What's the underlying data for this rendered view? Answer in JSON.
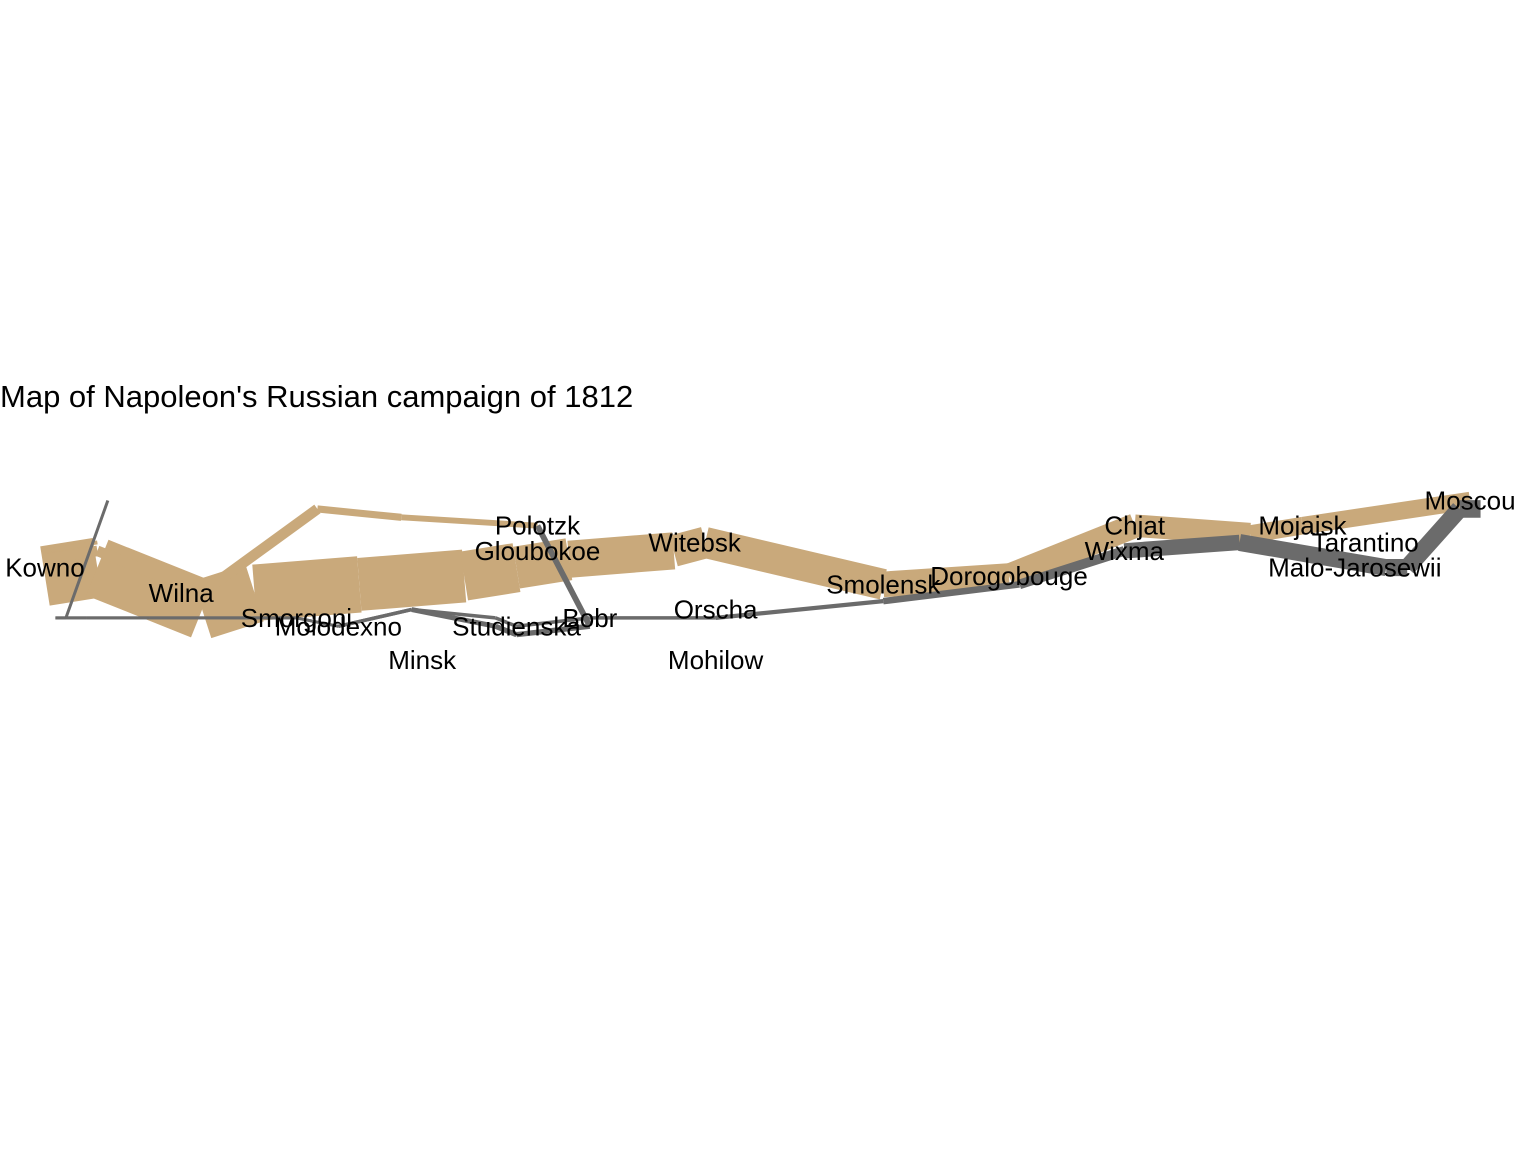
{
  "chart_data": {
    "type": "line",
    "title": "Map of Napoleon's Russian campaign of 1812",
    "xlabel": "",
    "ylabel": "",
    "xlim": [
      23.8,
      38.0
    ],
    "ylim": [
      53.9,
      55.9
    ],
    "grid": false,
    "legend": "none",
    "colors": {
      "advance": "#c9a97b",
      "retreat": "#6b6b6b",
      "text": "#000000",
      "background": "#ffffff"
    },
    "series": [
      {
        "direction": "A",
        "group": 1,
        "points": [
          {
            "lon": 24.0,
            "lat": 54.9,
            "survivors": 340000
          },
          {
            "lon": 24.5,
            "lat": 55.0,
            "survivors": 340000
          },
          {
            "lon": 25.5,
            "lat": 54.5,
            "survivors": 340000
          },
          {
            "lon": 26.0,
            "lat": 54.7,
            "survivors": 320000
          },
          {
            "lon": 27.0,
            "lat": 54.8,
            "survivors": 300000
          },
          {
            "lon": 28.0,
            "lat": 54.9,
            "survivors": 280000
          },
          {
            "lon": 28.5,
            "lat": 55.0,
            "survivors": 240000
          },
          {
            "lon": 29.0,
            "lat": 55.1,
            "survivors": 210000
          },
          {
            "lon": 30.0,
            "lat": 55.2,
            "survivors": 180000
          },
          {
            "lon": 30.3,
            "lat": 55.3,
            "survivors": 175000
          },
          {
            "lon": 32.0,
            "lat": 54.8,
            "survivors": 145000
          },
          {
            "lon": 33.2,
            "lat": 54.9,
            "survivors": 140000
          },
          {
            "lon": 34.4,
            "lat": 55.5,
            "survivors": 127100
          },
          {
            "lon": 35.5,
            "lat": 55.4,
            "survivors": 100000
          },
          {
            "lon": 36.0,
            "lat": 55.5,
            "survivors": 100000
          },
          {
            "lon": 37.6,
            "lat": 55.8,
            "survivors": 100000
          }
        ]
      },
      {
        "direction": "R",
        "group": 1,
        "points": [
          {
            "lon": 37.7,
            "lat": 55.7,
            "survivors": 100000
          },
          {
            "lon": 37.5,
            "lat": 55.7,
            "survivors": 98000
          },
          {
            "lon": 37.0,
            "lat": 55.0,
            "survivors": 97000
          },
          {
            "lon": 36.8,
            "lat": 55.0,
            "survivors": 96000
          },
          {
            "lon": 35.4,
            "lat": 55.3,
            "survivors": 87000
          },
          {
            "lon": 34.3,
            "lat": 55.2,
            "survivors": 55000
          },
          {
            "lon": 33.3,
            "lat": 54.8,
            "survivors": 37000
          },
          {
            "lon": 32.0,
            "lat": 54.6,
            "survivors": 24000
          },
          {
            "lon": 30.4,
            "lat": 54.4,
            "survivors": 20000
          },
          {
            "lon": 29.2,
            "lat": 54.4,
            "survivors": 20000
          },
          {
            "lon": 28.5,
            "lat": 54.3,
            "survivors": 20000
          },
          {
            "lon": 28.3,
            "lat": 54.4,
            "survivors": 20000
          },
          {
            "lon": 27.5,
            "lat": 54.5,
            "survivors": 20000
          },
          {
            "lon": 26.8,
            "lat": 54.3,
            "survivors": 12000
          },
          {
            "lon": 26.4,
            "lat": 54.4,
            "survivors": 14000
          },
          {
            "lon": 25.0,
            "lat": 54.4,
            "survivors": 8000
          },
          {
            "lon": 24.4,
            "lat": 54.4,
            "survivors": 4000
          },
          {
            "lon": 24.2,
            "lat": 54.4,
            "survivors": 4000
          },
          {
            "lon": 24.1,
            "lat": 54.4,
            "survivors": 4000
          }
        ]
      },
      {
        "direction": "A",
        "group": 2,
        "points": [
          {
            "lon": 24.0,
            "lat": 55.1,
            "survivors": 60000
          },
          {
            "lon": 24.5,
            "lat": 55.2,
            "survivors": 60000
          },
          {
            "lon": 25.5,
            "lat": 54.7,
            "survivors": 60000
          },
          {
            "lon": 26.6,
            "lat": 55.7,
            "survivors": 40000
          },
          {
            "lon": 27.4,
            "lat": 55.6,
            "survivors": 33000
          }
        ]
      },
      {
        "direction": "A",
        "group": 2,
        "points": [
          {
            "lon": 27.4,
            "lat": 55.6,
            "survivors": 33000
          },
          {
            "lon": 28.7,
            "lat": 55.5,
            "survivors": 33000
          }
        ]
      },
      {
        "direction": "R",
        "group": 2,
        "points": [
          {
            "lon": 28.7,
            "lat": 55.5,
            "survivors": 33000
          },
          {
            "lon": 29.2,
            "lat": 54.3,
            "survivors": 30000
          },
          {
            "lon": 28.5,
            "lat": 54.2,
            "survivors": 30000
          },
          {
            "lon": 28.3,
            "lat": 54.3,
            "survivors": 28000
          },
          {
            "lon": 27.5,
            "lat": 54.5,
            "survivors": 20000
          },
          {
            "lon": 26.8,
            "lat": 54.3,
            "survivors": 12000
          },
          {
            "lon": 26.4,
            "lat": 54.4,
            "survivors": 14000
          },
          {
            "lon": 25.0,
            "lat": 54.4,
            "survivors": 8000
          },
          {
            "lon": 24.4,
            "lat": 54.4,
            "survivors": 4000
          },
          {
            "lon": 24.2,
            "lat": 54.4,
            "survivors": 4000
          },
          {
            "lon": 24.1,
            "lat": 54.4,
            "survivors": 4000
          }
        ]
      },
      {
        "direction": "A",
        "group": 3,
        "points": [
          {
            "lon": 24.0,
            "lat": 55.2,
            "survivors": 22000
          },
          {
            "lon": 24.5,
            "lat": 55.3,
            "survivors": 22000
          }
        ]
      },
      {
        "direction": "R",
        "group": 3,
        "points": [
          {
            "lon": 24.6,
            "lat": 55.8,
            "survivors": 6000
          },
          {
            "lon": 24.2,
            "lat": 54.4,
            "survivors": 6000
          },
          {
            "lon": 24.1,
            "lat": 54.4,
            "survivors": 6000
          }
        ]
      }
    ],
    "cities": [
      {
        "name": "Kowno",
        "lon": 24.0,
        "lat": 55.0
      },
      {
        "name": "Wilna",
        "lon": 25.3,
        "lat": 54.7
      },
      {
        "name": "Smorgoni",
        "lon": 26.4,
        "lat": 54.4
      },
      {
        "name": "Moiodexno",
        "lon": 26.8,
        "lat": 54.3
      },
      {
        "name": "Gloubokoe",
        "lon": 28.7,
        "lat": 55.2
      },
      {
        "name": "Minsk",
        "lon": 27.6,
        "lat": 53.9
      },
      {
        "name": "Studienska",
        "lon": 28.5,
        "lat": 54.3
      },
      {
        "name": "Polotzk",
        "lon": 28.7,
        "lat": 55.5
      },
      {
        "name": "Bobr",
        "lon": 29.2,
        "lat": 54.4
      },
      {
        "name": "Witebsk",
        "lon": 30.2,
        "lat": 55.3
      },
      {
        "name": "Orscha",
        "lon": 30.4,
        "lat": 54.5
      },
      {
        "name": "Mohilow",
        "lon": 30.4,
        "lat": 53.9
      },
      {
        "name": "Smolensk",
        "lon": 32.0,
        "lat": 54.8
      },
      {
        "name": "Dorogobouge",
        "lon": 33.2,
        "lat": 54.9
      },
      {
        "name": "Wixma",
        "lon": 34.3,
        "lat": 55.2
      },
      {
        "name": "Chjat",
        "lon": 34.4,
        "lat": 55.5
      },
      {
        "name": "Mojaisk",
        "lon": 36.0,
        "lat": 55.5
      },
      {
        "name": "Moscou",
        "lon": 37.6,
        "lat": 55.8
      },
      {
        "name": "Tarantino",
        "lon": 36.6,
        "lat": 55.3
      },
      {
        "name": "Malo-Jarosewii",
        "lon": 36.5,
        "lat": 55.0
      }
    ]
  }
}
